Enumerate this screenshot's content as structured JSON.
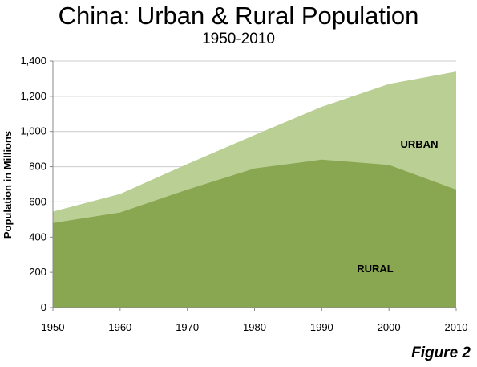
{
  "title": "China: Urban & Rural Population",
  "subtitle": "1950-2010",
  "figure_label": "Figure 2",
  "colors": {
    "rural": "#89a650",
    "urban": "#b9cf93",
    "grid": "#cccccc",
    "axis": "#888888"
  },
  "chart_data": {
    "type": "area",
    "stacked": true,
    "x": [
      1950,
      1960,
      1970,
      1980,
      1990,
      2000,
      2010
    ],
    "ylabel": "Population in Millions",
    "xlabel": "",
    "ylim": [
      0,
      1400
    ],
    "yticks": [
      0,
      200,
      400,
      600,
      800,
      1000,
      1200,
      1400
    ],
    "ytick_labels": [
      "0",
      "200",
      "400",
      "600",
      "800",
      "1,000",
      "1,200",
      "1,400"
    ],
    "xtick_labels": [
      "1950",
      "1960",
      "1970",
      "1980",
      "1990",
      "2000",
      "2010"
    ],
    "grid": "horizontal",
    "series": [
      {
        "name": "RURAL",
        "values": [
          480,
          540,
          670,
          790,
          840,
          810,
          670
        ]
      },
      {
        "name": "URBAN",
        "values": [
          65,
          105,
          145,
          190,
          300,
          460,
          670
        ]
      }
    ]
  }
}
